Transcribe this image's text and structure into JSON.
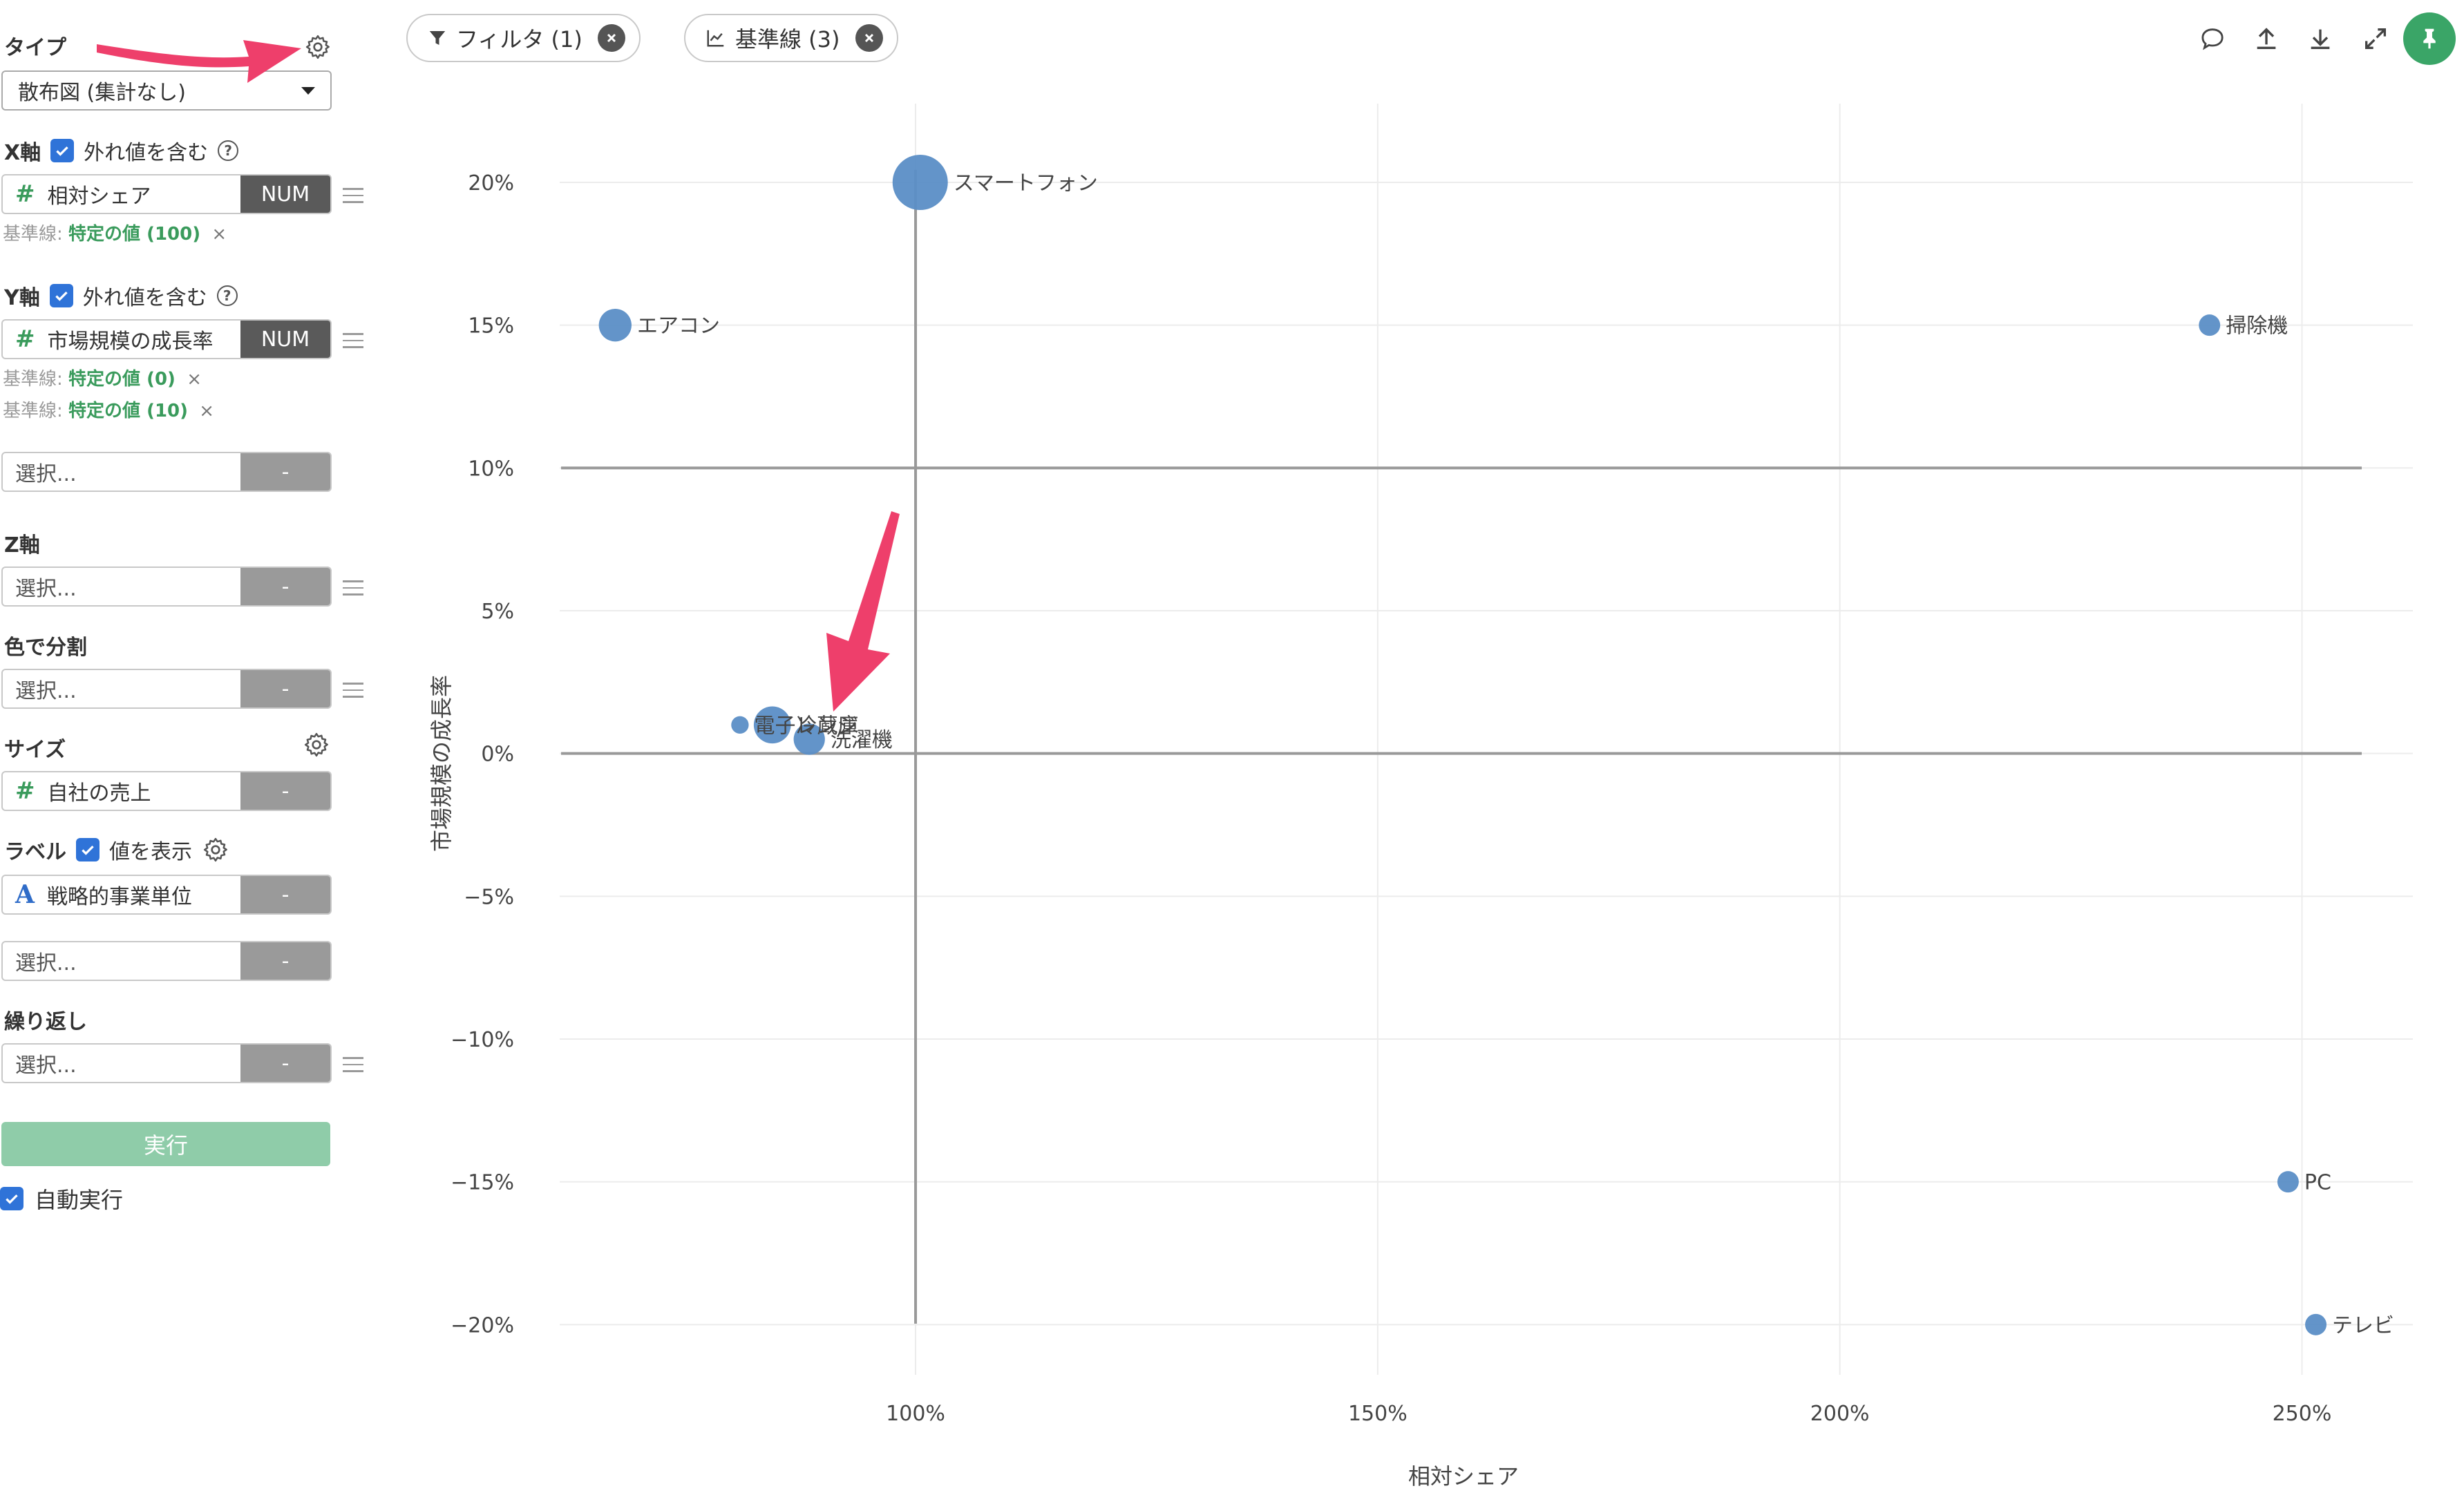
{
  "sidebar": {
    "type_label": "タイプ",
    "chart_type": "散布図 (集計なし)",
    "x_axis": {
      "label": "X軸",
      "include_outliers": "外れ値を含む",
      "field": "相対シェア",
      "field_type": "NUM",
      "baseline_prefix": "基準線:",
      "baselines": [
        "特定の値 (100)"
      ]
    },
    "y_axis": {
      "label": "Y軸",
      "include_outliers": "外れ値を含む",
      "field": "市場規模の成長率",
      "field_type": "NUM",
      "baseline_prefix": "基準線:",
      "baselines": [
        "特定の値 (0)",
        "特定の値 (10)"
      ]
    },
    "extra_field": {
      "placeholder": "選択...",
      "tag": "-"
    },
    "z_axis": {
      "label": "Z軸",
      "placeholder": "選択...",
      "tag": "-"
    },
    "color": {
      "label": "色で分割",
      "placeholder": "選択...",
      "tag": "-"
    },
    "size": {
      "label": "サイズ",
      "field": "自社の売上",
      "tag": "-"
    },
    "label": {
      "label": "ラベル",
      "show_values": "値を表示",
      "field": "戦略的事業単位",
      "tag": "-",
      "extra_placeholder": "選択...",
      "extra_tag": "-"
    },
    "repeat": {
      "label": "繰り返し",
      "placeholder": "選択...",
      "tag": "-"
    },
    "run_button": "実行",
    "auto_run": "自動実行",
    "close_x": "×"
  },
  "topbar": {
    "filter_pill": "フィルタ (1)",
    "baseline_pill": "基準線 (3)",
    "icons": [
      "comment-icon",
      "upload-icon",
      "download-icon",
      "expand-icon",
      "pin-icon"
    ]
  },
  "colors": {
    "point": "#5b8ec6",
    "baseline": "#999999",
    "grid": "#ececec",
    "accent_green": "#3aa567",
    "arrow": "#ee3f6b"
  },
  "chart_data": {
    "type": "scatter",
    "xlabel": "相対シェア",
    "ylabel": "市場規模の成長率",
    "xlim": [
      60,
      262
    ],
    "ylim": [
      -22,
      23
    ],
    "x_ticks": [
      {
        "value": 100,
        "label": "100%"
      },
      {
        "value": 150,
        "label": "150%"
      },
      {
        "value": 200,
        "label": "200%"
      },
      {
        "value": 250,
        "label": "250%"
      }
    ],
    "y_ticks": [
      {
        "value": 20,
        "label": "20%"
      },
      {
        "value": 15,
        "label": "15%"
      },
      {
        "value": 10,
        "label": "10%"
      },
      {
        "value": 5,
        "label": "5%"
      },
      {
        "value": 0,
        "label": "0%"
      },
      {
        "value": -5,
        "label": "−5%"
      },
      {
        "value": -10,
        "label": "−10%"
      },
      {
        "value": -15,
        "label": "−15%"
      },
      {
        "value": -20,
        "label": "−20%"
      }
    ],
    "baselines": {
      "x": [
        100
      ],
      "y": [
        0,
        10
      ]
    },
    "grid": true,
    "points": [
      {
        "label": "スマートフォン",
        "x": 100.5,
        "y": 20,
        "size": 100
      },
      {
        "label": "エアコン",
        "x": 67.5,
        "y": 15,
        "size": 35
      },
      {
        "label": "掃除機",
        "x": 240,
        "y": 15,
        "size": 15
      },
      {
        "label": "電子レンジ",
        "x": 81,
        "y": 1,
        "size": 10
      },
      {
        "label": "冷蔵庫",
        "x": 84.5,
        "y": 1,
        "size": 45
      },
      {
        "label": "洗濯機",
        "x": 88.5,
        "y": 0.5,
        "size": 32
      },
      {
        "label": "PC",
        "x": 248.5,
        "y": -15,
        "size": 15
      },
      {
        "label": "テレビ",
        "x": 251.5,
        "y": -20,
        "size": 15
      }
    ]
  }
}
